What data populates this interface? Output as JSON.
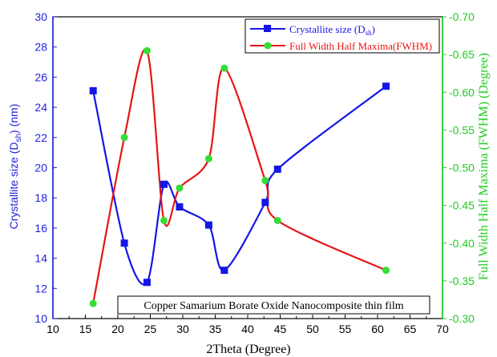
{
  "chart_data": {
    "type": "line",
    "xlabel": "2Theta (Degree)",
    "x_axis": {
      "min": 10,
      "max": 70,
      "step": 5
    },
    "y_left": {
      "label_main": "Crystallite size (D",
      "label_sub": "sh",
      "label_tail": ") (nm)",
      "min": 10,
      "max": 30,
      "step": 2,
      "color": "#1f1fdd"
    },
    "y_right": {
      "label": "Full Width Half Maxima (FWHM) (Degree)",
      "min": 0.3,
      "max": 0.7,
      "step": 0.05,
      "color": "#22cc22"
    },
    "series": [
      {
        "name": "Crystallite size (D",
        "name_sub": "sh",
        "name_tail": ")",
        "axis": "left",
        "line_color": "#1515e6",
        "marker_color": "#1515e6",
        "marker": "square",
        "x": [
          16.2,
          21.0,
          24.5,
          27.1,
          29.5,
          34.0,
          36.4,
          42.7,
          44.6,
          61.3
        ],
        "y": [
          25.1,
          15.0,
          12.4,
          18.9,
          17.4,
          16.2,
          13.2,
          17.7,
          19.9,
          25.4
        ]
      },
      {
        "name": "Full Width Half Maxima(FWHM)",
        "axis": "right",
        "line_color": "#e61515",
        "marker_color": "#33dd33",
        "marker": "circle",
        "x": [
          16.2,
          21.0,
          24.5,
          27.1,
          29.5,
          34.0,
          36.4,
          42.7,
          44.6,
          61.3
        ],
        "y": [
          0.32,
          0.54,
          0.655,
          0.43,
          0.473,
          0.512,
          0.632,
          0.483,
          0.43,
          0.364
        ]
      }
    ],
    "annotation": "Copper Samarium Borate Oxide Nanocomposite thin film",
    "legend_position": "top-right"
  }
}
